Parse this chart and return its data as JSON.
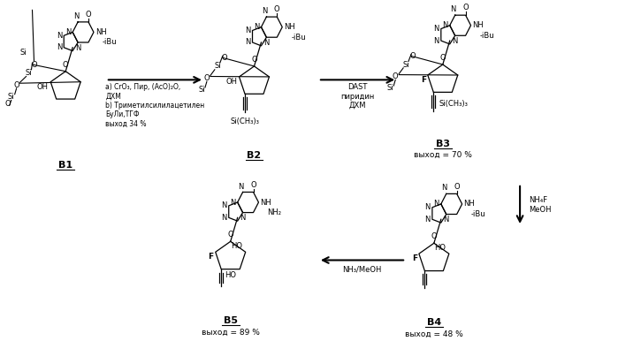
{
  "background_color": "#ffffff",
  "figsize": [
    6.99,
    3.86
  ],
  "dpi": 100,
  "arrow_b1b2_label": "a) CrO₃, Пир, (AcO)₂O,\nДХМ\nb) Триметилсилилацетилен\nБуЛи,ТГФ\nвыход 34 %",
  "arrow_b2b3_label": "DAST\nпиридин\nДХМ",
  "arrow_b3b4_label": "NH₄F\nMeOH",
  "arrow_b4b5_label": "NH₃/MeOH",
  "yield_b3": "выход = 70 %",
  "yield_b4": "выход = 48 %",
  "yield_b5": "выход = 89 %"
}
